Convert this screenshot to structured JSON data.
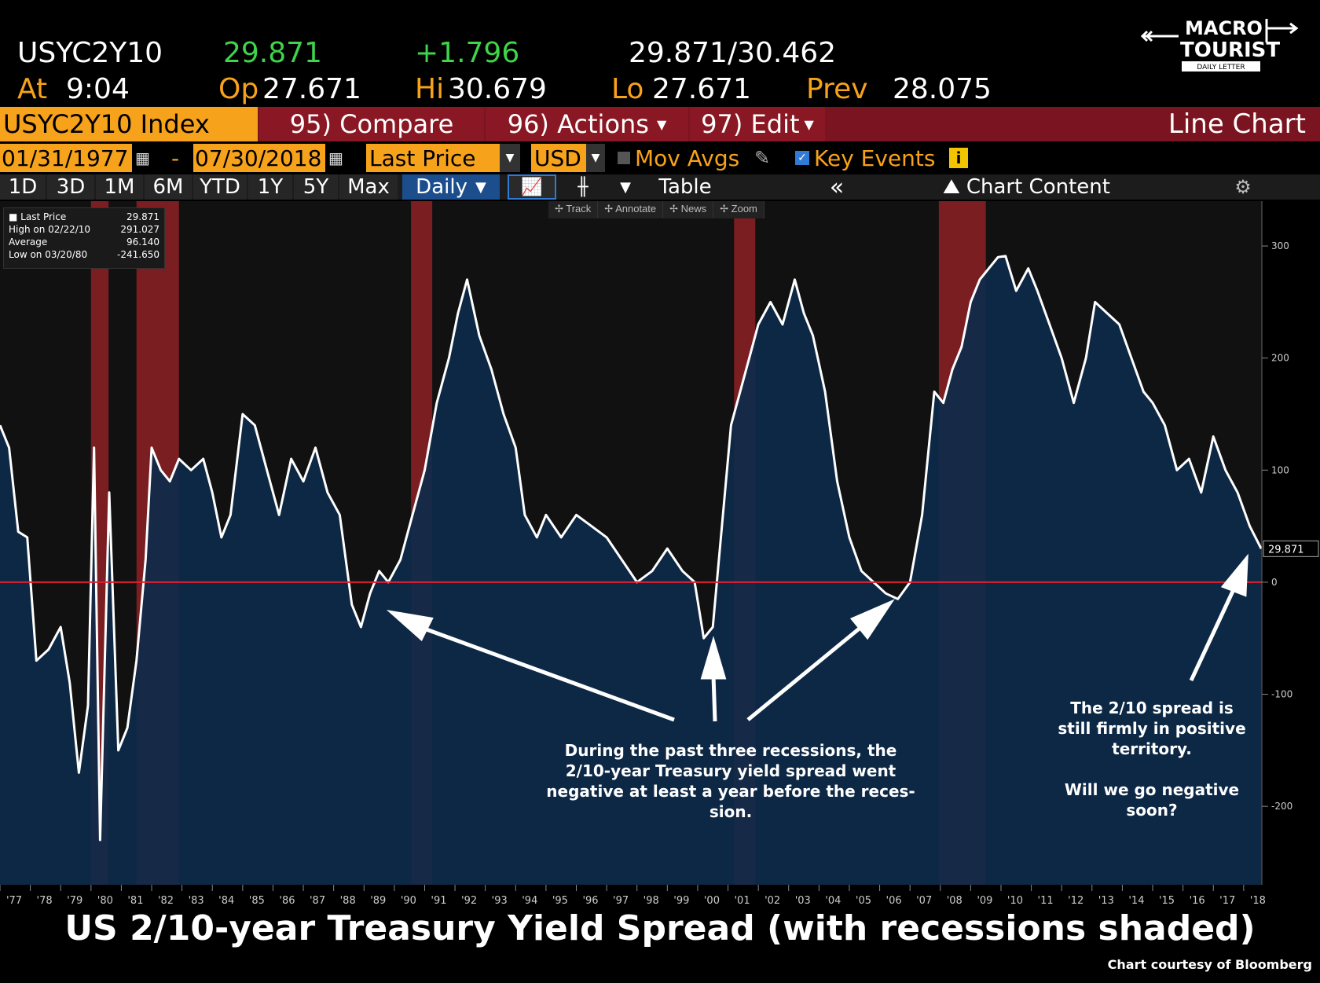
{
  "header": {
    "ticker": "USYC2Y10",
    "last": "29.871",
    "change": "+1.796",
    "bid_ask": "29.871/30.462",
    "at_label": "At",
    "at_time": "9:04",
    "op_label": "Op",
    "op_value": "27.671",
    "hi_label": "Hi",
    "hi_value": "30.679",
    "lo_label": "Lo",
    "lo_value": "27.671",
    "prev_label": "Prev",
    "prev_value": "28.075"
  },
  "logo": {
    "line1": "MACRO",
    "line2": "TOURIST",
    "line3": "DAILY LETTER"
  },
  "toolbar1": {
    "security": "USYC2Y10 Index",
    "compare": "95) Compare",
    "actions": "96) Actions",
    "edit": "97) Edit",
    "chart_type": "Line Chart"
  },
  "toolbar2": {
    "start_date": "01/31/1977",
    "dash": "-",
    "end_date": "07/30/2018",
    "field": "Last Price",
    "currency": "USD",
    "mov_avgs": "Mov Avgs",
    "key_events": "Key Events",
    "info": "i"
  },
  "toolbar3": {
    "ranges": [
      "1D",
      "3D",
      "1M",
      "6M",
      "YTD",
      "1Y",
      "5Y",
      "Max"
    ],
    "frequency": "Daily",
    "table": "Table",
    "chart_content": "Chart Content"
  },
  "chart_tools": [
    "Track",
    "Annotate",
    "News",
    "Zoom"
  ],
  "legend": {
    "rows": [
      {
        "label": "Last Price",
        "value": "29.871"
      },
      {
        "label": "High on 02/22/10",
        "value": "291.027"
      },
      {
        "label": "Average",
        "value": "96.140"
      },
      {
        "label": "Low on 03/20/80",
        "value": "-241.650"
      }
    ]
  },
  "colors": {
    "line": "#ffffff",
    "fill": "#0d2a4a",
    "recession": "#7a1e22",
    "zero_line": "#e02030",
    "orange": "#f7a21b",
    "toolbar_red": "#7a1420"
  },
  "chart_data": {
    "type": "area",
    "title": "US 2/10-year Treasury Yield Spread (with recessions shaded)",
    "xlabel": "",
    "ylabel": "",
    "ylim": [
      -270,
      340
    ],
    "xlim": [
      1977.0,
      2018.6
    ],
    "y_ticks": [
      300,
      200,
      100,
      0,
      -100,
      -200
    ],
    "x_ticks": [
      "'77",
      "'78",
      "'79",
      "'80",
      "'81",
      "'82",
      "'83",
      "'84",
      "'85",
      "'86",
      "'87",
      "'88",
      "'89",
      "'90",
      "'91",
      "'92",
      "'93",
      "'94",
      "'95",
      "'96",
      "'97",
      "'98",
      "'99",
      "'00",
      "'01",
      "'02",
      "'03",
      "'04",
      "'05",
      "'06",
      "'07",
      "'08",
      "'09",
      "'10",
      "'11",
      "'12",
      "'13",
      "'14",
      "'15",
      "'16",
      "'17",
      "'18"
    ],
    "last_value_label": "29.871",
    "recessions": [
      [
        1980.0,
        1980.58
      ],
      [
        1981.5,
        1982.9
      ],
      [
        1990.55,
        1991.25
      ],
      [
        2001.2,
        2001.9
      ],
      [
        2007.95,
        2009.5
      ]
    ],
    "grid": false,
    "series": [
      {
        "x": [
          1977.0,
          1977.3,
          1977.6,
          1977.9,
          1978.2,
          1978.6,
          1979.0,
          1979.3,
          1979.6,
          1979.9,
          1980.1,
          1980.3,
          1980.6,
          1980.9,
          1981.2,
          1981.5,
          1981.8,
          1982.0,
          1982.3,
          1982.6,
          1982.9,
          1983.3,
          1983.7,
          1984.0,
          1984.3,
          1984.6,
          1985.0,
          1985.4,
          1985.8,
          1986.2,
          1986.6,
          1987.0,
          1987.4,
          1987.8,
          1988.2,
          1988.6,
          1988.9,
          1989.2,
          1989.5,
          1989.8,
          1990.2,
          1990.6,
          1991.0,
          1991.4,
          1991.8,
          1992.1,
          1992.4,
          1992.8,
          1993.2,
          1993.6,
          1994.0,
          1994.3,
          1994.7,
          1995.0,
          1995.5,
          1996.0,
          1996.5,
          1997.0,
          1997.5,
          1998.0,
          1998.5,
          1999.0,
          1999.5,
          1999.9,
          2000.2,
          2000.5,
          2000.8,
          2001.1,
          2001.4,
          2001.7,
          2002.0,
          2002.4,
          2002.8,
          2003.2,
          2003.5,
          2003.8,
          2004.2,
          2004.6,
          2005.0,
          2005.4,
          2005.8,
          2006.2,
          2006.6,
          2007.0,
          2007.4,
          2007.8,
          2008.1,
          2008.4,
          2008.7,
          2009.0,
          2009.3,
          2009.6,
          2009.9,
          2010.15,
          2010.5,
          2010.9,
          2011.2,
          2011.6,
          2012.0,
          2012.4,
          2012.8,
          2013.1,
          2013.5,
          2013.9,
          2014.3,
          2014.7,
          2015.0,
          2015.4,
          2015.8,
          2016.2,
          2016.6,
          2017.0,
          2017.4,
          2017.8,
          2018.2,
          2018.58
        ],
        "y": [
          140,
          120,
          45,
          40,
          -70,
          -60,
          -40,
          -90,
          -170,
          -110,
          120,
          -230,
          80,
          -150,
          -130,
          -70,
          20,
          120,
          100,
          90,
          110,
          100,
          110,
          80,
          40,
          60,
          150,
          140,
          100,
          60,
          110,
          90,
          120,
          80,
          60,
          -20,
          -40,
          -10,
          10,
          0,
          20,
          60,
          100,
          160,
          200,
          240,
          270,
          220,
          190,
          150,
          120,
          60,
          40,
          60,
          40,
          60,
          50,
          40,
          20,
          0,
          10,
          30,
          10,
          0,
          -50,
          -40,
          50,
          140,
          170,
          200,
          230,
          250,
          230,
          270,
          240,
          220,
          170,
          90,
          40,
          10,
          0,
          -10,
          -15,
          0,
          60,
          170,
          160,
          190,
          210,
          250,
          270,
          280,
          290,
          291,
          260,
          280,
          260,
          230,
          200,
          160,
          200,
          250,
          240,
          230,
          200,
          170,
          160,
          140,
          100,
          110,
          80,
          130,
          100,
          80,
          50,
          29.871
        ]
      }
    ]
  },
  "annotations": {
    "note1": [
      "During the past three recessions, the",
      "2/10-year Treasury yield spread went",
      "negative at least a year before the reces-",
      "sion."
    ],
    "note2": [
      "The 2/10 spread is",
      "still firmly in positive",
      "territory.",
      "",
      "Will we go negative",
      "soon?"
    ]
  },
  "credit": "Chart courtesy of Bloomberg"
}
